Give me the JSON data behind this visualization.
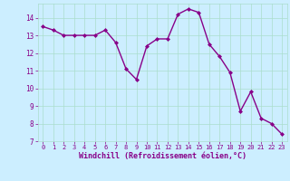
{
  "x": [
    0,
    1,
    2,
    3,
    4,
    5,
    6,
    7,
    8,
    9,
    10,
    11,
    12,
    13,
    14,
    15,
    16,
    17,
    18,
    19,
    20,
    21,
    22,
    23
  ],
  "y": [
    13.5,
    13.3,
    13.0,
    13.0,
    13.0,
    13.0,
    13.3,
    12.6,
    11.1,
    10.5,
    12.4,
    12.8,
    12.8,
    14.2,
    14.5,
    14.3,
    12.5,
    11.8,
    10.9,
    8.7,
    9.8,
    8.3,
    8.0,
    7.4
  ],
  "line_color": "#880088",
  "marker": "D",
  "marker_size": 2.0,
  "line_width": 1.0,
  "xlabel": "Windchill (Refroidissement éolien,°C)",
  "xlabel_fontsize": 6.0,
  "bg_color": "#cceeff",
  "grid_color": "#aaddcc",
  "tick_color": "#880088",
  "label_color": "#880088",
  "ylim": [
    7,
    14.8
  ],
  "xlim": [
    -0.5,
    23.5
  ],
  "yticks": [
    7,
    8,
    9,
    10,
    11,
    12,
    13,
    14
  ],
  "xticks": [
    0,
    1,
    2,
    3,
    4,
    5,
    6,
    7,
    8,
    9,
    10,
    11,
    12,
    13,
    14,
    15,
    16,
    17,
    18,
    19,
    20,
    21,
    22,
    23
  ]
}
